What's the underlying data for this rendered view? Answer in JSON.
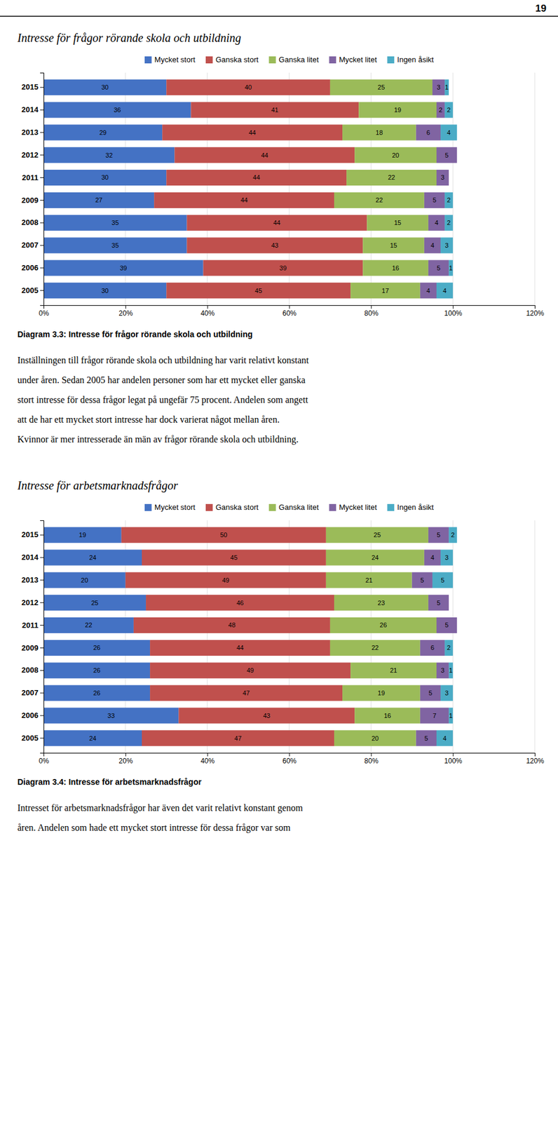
{
  "page_number": "19",
  "chart_data": [
    {
      "type": "bar",
      "orientation": "horizontal",
      "stacked": true,
      "data_labels": true,
      "grid": true,
      "legend": "top",
      "title": "Intresse för frågor rörande skola och utbildning",
      "annotations": [
        "Diagram 3.3: Intresse för frågor rörande skola och utbildning",
        "Inställningen till frågor rörande skola och utbildning har varit relativt konstant",
        "under åren. Sedan 2005 har andelen personer som har ett mycket eller ganska",
        "stort intresse för dessa frågor legat på ungefär 75 procent. Andelen som angett",
        "att de har ett mycket stort intresse har dock varierat något mellan åren.",
        "Kvinnor är mer intresserade än män av frågor rörande skola och utbildning."
      ],
      "categories": [
        "2015",
        "2014",
        "2013",
        "2012",
        "2011",
        "2009",
        "2008",
        "2007",
        "2006",
        "2005"
      ],
      "series": [
        {
          "name": "Mycket stort",
          "color": "#4472C4",
          "values": [
            30,
            36,
            29,
            32,
            30,
            27,
            35,
            35,
            39,
            30
          ]
        },
        {
          "name": "Ganska stort",
          "color": "#C0504D",
          "values": [
            40,
            41,
            44,
            44,
            44,
            44,
            44,
            43,
            39,
            45
          ]
        },
        {
          "name": "Ganska litet",
          "color": "#9BBB59",
          "values": [
            25,
            19,
            18,
            20,
            22,
            22,
            15,
            15,
            16,
            17
          ]
        },
        {
          "name": "Mycket litet",
          "color": "#8064A2",
          "values": [
            3,
            2,
            6,
            5,
            3,
            5,
            4,
            4,
            5,
            4
          ]
        },
        {
          "name": "Ingen åsikt",
          "color": "#4BACC6",
          "values": [
            1,
            2,
            4,
            0,
            0,
            2,
            2,
            3,
            1,
            4
          ]
        }
      ],
      "xlim": [
        0,
        120
      ],
      "xticks": [
        {
          "value": 0,
          "label": "0%"
        },
        {
          "value": 20,
          "label": "20%"
        },
        {
          "value": 40,
          "label": "40%"
        },
        {
          "value": 60,
          "label": "60%"
        },
        {
          "value": 80,
          "label": "80%"
        },
        {
          "value": 100,
          "label": "100%"
        },
        {
          "value": 120,
          "label": "120%"
        }
      ]
    },
    {
      "type": "bar",
      "orientation": "horizontal",
      "stacked": true,
      "data_labels": true,
      "grid": true,
      "legend": "top",
      "title": "Intresse för arbetsmarknadsfrågor",
      "annotations": [
        "Diagram 3.4: Intresse för arbetsmarknadsfrågor",
        "Intresset för arbetsmarknadsfrågor har även det varit relativt konstant genom",
        "åren. Andelen som hade ett mycket stort intresse för dessa frågor var som"
      ],
      "categories": [
        "2015",
        "2014",
        "2013",
        "2012",
        "2011",
        "2009",
        "2008",
        "2007",
        "2006",
        "2005"
      ],
      "series": [
        {
          "name": "Mycket stort",
          "color": "#4472C4",
          "values": [
            19,
            24,
            20,
            25,
            22,
            26,
            26,
            26,
            33,
            24
          ]
        },
        {
          "name": "Ganska stort",
          "color": "#C0504D",
          "values": [
            50,
            45,
            49,
            46,
            48,
            44,
            49,
            47,
            43,
            47
          ]
        },
        {
          "name": "Ganska litet",
          "color": "#9BBB59",
          "values": [
            25,
            24,
            21,
            23,
            26,
            22,
            21,
            19,
            16,
            20
          ]
        },
        {
          "name": "Mycket litet",
          "color": "#8064A2",
          "values": [
            5,
            4,
            5,
            5,
            5,
            6,
            3,
            5,
            7,
            5
          ]
        },
        {
          "name": "Ingen åsikt",
          "color": "#4BACC6",
          "values": [
            2,
            3,
            5,
            0,
            0,
            2,
            1,
            3,
            1,
            4
          ]
        }
      ],
      "xlim": [
        0,
        120
      ],
      "xticks": [
        {
          "value": 0,
          "label": "0%"
        },
        {
          "value": 20,
          "label": "20%"
        },
        {
          "value": 40,
          "label": "40%"
        },
        {
          "value": 60,
          "label": "60%"
        },
        {
          "value": 80,
          "label": "80%"
        },
        {
          "value": 100,
          "label": "100%"
        },
        {
          "value": 120,
          "label": "120%"
        }
      ]
    }
  ]
}
